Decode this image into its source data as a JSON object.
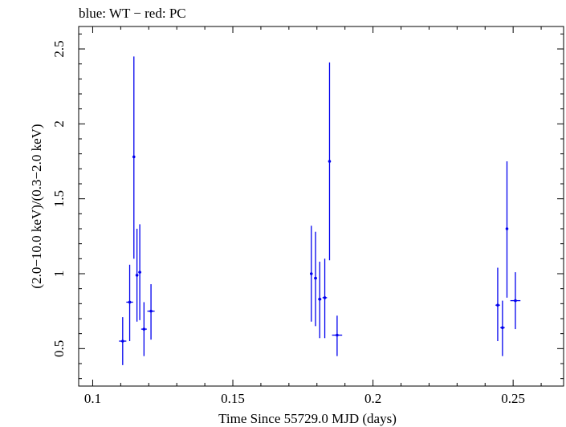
{
  "chart_data": {
    "type": "scatter",
    "title": "blue: WT − red: PC",
    "xlabel": "Time Since 55729.0 MJD (days)",
    "ylabel": "(2.0−10.0 keV)/(0.3−2.0 keV)",
    "xlim": [
      0.095,
      0.268
    ],
    "ylim": [
      0.25,
      2.65
    ],
    "xticks": [
      0.1,
      0.15,
      0.2,
      0.25
    ],
    "xtick_labels": [
      "0.1",
      "0.15",
      "0.2",
      "0.25"
    ],
    "yticks": [
      0.5,
      1,
      1.5,
      2,
      2.5
    ],
    "ytick_labels": [
      "0.5",
      "1",
      "1.5",
      "2",
      "2.5"
    ],
    "grid": false,
    "series": [
      {
        "color": "#0000ee",
        "points": [
          {
            "x": 0.1107,
            "y": 0.55,
            "xerr": 0.0013,
            "ylo": 0.39,
            "yhi": 0.71
          },
          {
            "x": 0.1132,
            "y": 0.81,
            "xerr": 0.0012,
            "ylo": 0.55,
            "yhi": 1.06
          },
          {
            "x": 0.1147,
            "y": 1.78,
            "xerr": 0.0003,
            "ylo": 1.1,
            "yhi": 2.45
          },
          {
            "x": 0.1158,
            "y": 0.99,
            "xerr": 0.0005,
            "ylo": 0.68,
            "yhi": 1.3
          },
          {
            "x": 0.1168,
            "y": 1.01,
            "xerr": 0.0005,
            "ylo": 0.69,
            "yhi": 1.33
          },
          {
            "x": 0.1183,
            "y": 0.63,
            "xerr": 0.001,
            "ylo": 0.45,
            "yhi": 0.81
          },
          {
            "x": 0.1208,
            "y": 0.75,
            "xerr": 0.0013,
            "ylo": 0.56,
            "yhi": 0.93
          },
          {
            "x": 0.178,
            "y": 1.0,
            "xerr": 0.0005,
            "ylo": 0.68,
            "yhi": 1.32
          },
          {
            "x": 0.1795,
            "y": 0.97,
            "xerr": 0.0005,
            "ylo": 0.65,
            "yhi": 1.28
          },
          {
            "x": 0.181,
            "y": 0.83,
            "xerr": 0.0006,
            "ylo": 0.57,
            "yhi": 1.08
          },
          {
            "x": 0.1828,
            "y": 0.84,
            "xerr": 0.0008,
            "ylo": 0.57,
            "yhi": 1.1
          },
          {
            "x": 0.1845,
            "y": 1.75,
            "xerr": 0.0004,
            "ylo": 1.09,
            "yhi": 2.41
          },
          {
            "x": 0.1872,
            "y": 0.59,
            "xerr": 0.0018,
            "ylo": 0.45,
            "yhi": 0.72
          },
          {
            "x": 0.2445,
            "y": 0.79,
            "xerr": 0.0008,
            "ylo": 0.55,
            "yhi": 1.04
          },
          {
            "x": 0.2462,
            "y": 0.64,
            "xerr": 0.0008,
            "ylo": 0.45,
            "yhi": 0.82
          },
          {
            "x": 0.2478,
            "y": 1.3,
            "xerr": 0.0004,
            "ylo": 0.84,
            "yhi": 1.75
          },
          {
            "x": 0.2508,
            "y": 0.82,
            "xerr": 0.0018,
            "ylo": 0.63,
            "yhi": 1.01
          }
        ]
      }
    ]
  }
}
